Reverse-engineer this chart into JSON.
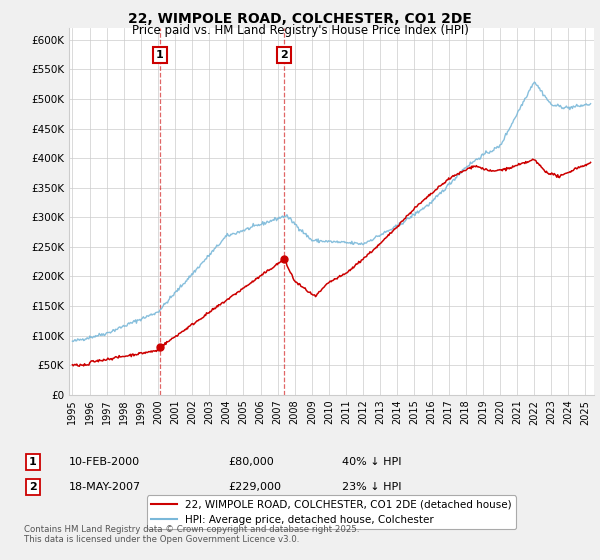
{
  "title": "22, WIMPOLE ROAD, COLCHESTER, CO1 2DE",
  "subtitle": "Price paid vs. HM Land Registry's House Price Index (HPI)",
  "ylabel_ticks": [
    "£0",
    "£50K",
    "£100K",
    "£150K",
    "£200K",
    "£250K",
    "£300K",
    "£350K",
    "£400K",
    "£450K",
    "£500K",
    "£550K",
    "£600K"
  ],
  "ylim": [
    0,
    620000
  ],
  "ytick_values": [
    0,
    50000,
    100000,
    150000,
    200000,
    250000,
    300000,
    350000,
    400000,
    450000,
    500000,
    550000,
    600000
  ],
  "xlim_start": 1994.8,
  "xlim_end": 2025.5,
  "hpi_color": "#7ab8d9",
  "price_color": "#cc0000",
  "vline1_x": 2000.11,
  "vline2_x": 2007.38,
  "marker1_x": 2000.11,
  "marker1_y": 80000,
  "marker2_x": 2007.38,
  "marker2_y": 229000,
  "legend_label1": "22, WIMPOLE ROAD, COLCHESTER, CO1 2DE (detached house)",
  "legend_label2": "HPI: Average price, detached house, Colchester",
  "annotation1_date": "10-FEB-2000",
  "annotation1_price": "£80,000",
  "annotation1_hpi": "40% ↓ HPI",
  "annotation2_date": "18-MAY-2007",
  "annotation2_price": "£229,000",
  "annotation2_hpi": "23% ↓ HPI",
  "footer": "Contains HM Land Registry data © Crown copyright and database right 2025.\nThis data is licensed under the Open Government Licence v3.0.",
  "background_color": "#f0f0f0",
  "plot_bg_color": "#ffffff"
}
